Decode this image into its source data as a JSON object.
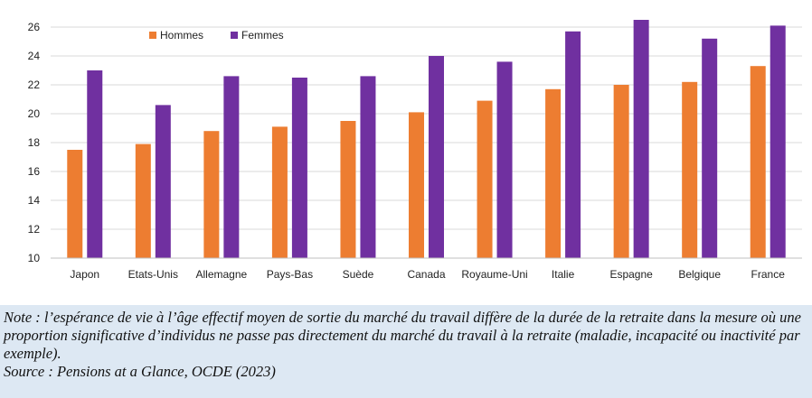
{
  "chart_data": {
    "type": "bar",
    "categories": [
      "Japon",
      "Etats-Unis",
      "Allemagne",
      "Pays-Bas",
      "Suède",
      "Canada",
      "Royaume-Uni",
      "Italie",
      "Espagne",
      "Belgique",
      "France"
    ],
    "series": [
      {
        "name": "Hommes",
        "color": "#ed7d31",
        "values": [
          17.5,
          17.9,
          18.8,
          19.1,
          19.5,
          20.1,
          20.9,
          21.7,
          22.0,
          22.2,
          23.3
        ]
      },
      {
        "name": "Femmes",
        "color": "#7030a0",
        "values": [
          23.0,
          20.6,
          22.6,
          22.5,
          22.6,
          24.0,
          23.6,
          25.7,
          26.5,
          25.2,
          26.1
        ]
      }
    ],
    "ylim": [
      10,
      26
    ],
    "yticks": [
      10,
      12,
      14,
      16,
      18,
      20,
      22,
      24,
      26
    ],
    "grid": true,
    "legend": "top-left"
  },
  "note": {
    "text": "Note : l’espérance de vie à l’âge effectif moyen de sortie du marché du travail diffère de la durée de la retraite dans la mesure où une proportion significative d’individus ne passe pas directement du marché du travail à la retraite (maladie, incapacité ou inactivité par exemple).",
    "source": "Source : Pensions at a Glance, OCDE (2023)"
  }
}
